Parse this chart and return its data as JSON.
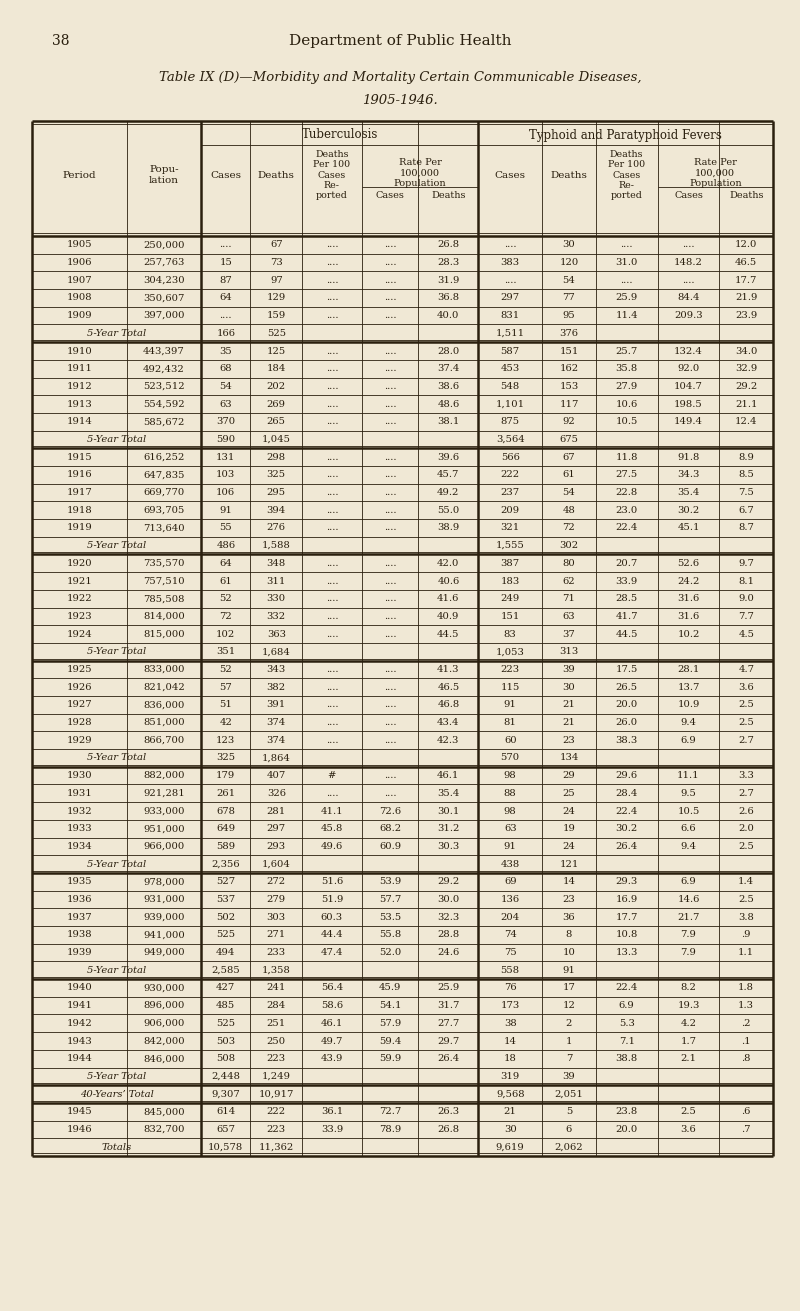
{
  "page_number": "38",
  "header": "Department of Public Health",
  "title": "Table IX (D)—Morbidity and Mortality Certain Communicable Diseases,",
  "subtitle": "1905-1946.",
  "background_color": "#f0e8d5",
  "text_color": "#2a1f0e",
  "rows": [
    [
      "1905",
      "250,000",
      "....",
      "67",
      "....",
      "....",
      "26.8",
      "....",
      "30",
      "....",
      "....",
      "12.0"
    ],
    [
      "1906",
      "257,763",
      "15",
      "73",
      "....",
      "....",
      "28.3",
      "383",
      "120",
      "31.0",
      "148.2",
      "46.5"
    ],
    [
      "1907",
      "304,230",
      "87",
      "97",
      "....",
      "....",
      "31.9",
      "....",
      "54",
      "....",
      "....",
      "17.7"
    ],
    [
      "1908",
      "350,607",
      "64",
      "129",
      "....",
      "....",
      "36.8",
      "297",
      "77",
      "25.9",
      "84.4",
      "21.9"
    ],
    [
      "1909",
      "397,000",
      "....",
      "159",
      "....",
      "....",
      "40.0",
      "831",
      "95",
      "11.4",
      "209.3",
      "23.9"
    ],
    [
      "5-Year Total",
      "",
      "166",
      "525",
      "",
      "",
      "",
      "1,511",
      "376",
      "",
      "",
      ""
    ],
    [
      "1910",
      "443,397",
      "35",
      "125",
      "....",
      "....",
      "28.0",
      "587",
      "151",
      "25.7",
      "132.4",
      "34.0"
    ],
    [
      "1911",
      "492,432",
      "68",
      "184",
      "....",
      "....",
      "37.4",
      "453",
      "162",
      "35.8",
      "92.0",
      "32.9"
    ],
    [
      "1912",
      "523,512",
      "54",
      "202",
      "....",
      "....",
      "38.6",
      "548",
      "153",
      "27.9",
      "104.7",
      "29.2"
    ],
    [
      "1913",
      "554,592",
      "63",
      "269",
      "....",
      "....",
      "48.6",
      "1,101",
      "117",
      "10.6",
      "198.5",
      "21.1"
    ],
    [
      "1914",
      "585,672",
      "370",
      "265",
      "....",
      "....",
      "38.1",
      "875",
      "92",
      "10.5",
      "149.4",
      "12.4"
    ],
    [
      "5-Year Total",
      "",
      "590",
      "1,045",
      "",
      "",
      "",
      "3,564",
      "675",
      "",
      "",
      ""
    ],
    [
      "1915",
      "616,252",
      "131",
      "298",
      "....",
      "....",
      "39.6",
      "566",
      "67",
      "11.8",
      "91.8",
      "8.9"
    ],
    [
      "1916",
      "647,835",
      "103",
      "325",
      "....",
      "....",
      "45.7",
      "222",
      "61",
      "27.5",
      "34.3",
      "8.5"
    ],
    [
      "1917",
      "669,770",
      "106",
      "295",
      "....",
      "....",
      "49.2",
      "237",
      "54",
      "22.8",
      "35.4",
      "7.5"
    ],
    [
      "1918",
      "693,705",
      "91",
      "394",
      "....",
      "....",
      "55.0",
      "209",
      "48",
      "23.0",
      "30.2",
      "6.7"
    ],
    [
      "1919",
      "713,640",
      "55",
      "276",
      "....",
      "....",
      "38.9",
      "321",
      "72",
      "22.4",
      "45.1",
      "8.7"
    ],
    [
      "5-Year Total",
      "",
      "486",
      "1,588",
      "",
      "",
      "",
      "1,555",
      "302",
      "",
      "",
      ""
    ],
    [
      "1920",
      "735,570",
      "64",
      "348",
      "....",
      "....",
      "42.0",
      "387",
      "80",
      "20.7",
      "52.6",
      "9.7"
    ],
    [
      "1921",
      "757,510",
      "61",
      "311",
      "....",
      "....",
      "40.6",
      "183",
      "62",
      "33.9",
      "24.2",
      "8.1"
    ],
    [
      "1922",
      "785,508",
      "52",
      "330",
      "....",
      "....",
      "41.6",
      "249",
      "71",
      "28.5",
      "31.6",
      "9.0"
    ],
    [
      "1923",
      "814,000",
      "72",
      "332",
      "....",
      "....",
      "40.9",
      "151",
      "63",
      "41.7",
      "31.6",
      "7.7"
    ],
    [
      "1924",
      "815,000",
      "102",
      "363",
      "....",
      "....",
      "44.5",
      "83",
      "37",
      "44.5",
      "10.2",
      "4.5"
    ],
    [
      "5-Year Total",
      "",
      "351",
      "1,684",
      "",
      "",
      "",
      "1,053",
      "313",
      "",
      "",
      ""
    ],
    [
      "1925",
      "833,000",
      "52",
      "343",
      "....",
      "....",
      "41.3",
      "223",
      "39",
      "17.5",
      "28.1",
      "4.7"
    ],
    [
      "1926",
      "821,042",
      "57",
      "382",
      "....",
      "....",
      "46.5",
      "115",
      "30",
      "26.5",
      "13.7",
      "3.6"
    ],
    [
      "1927",
      "836,000",
      "51",
      "391",
      "....",
      "....",
      "46.8",
      "91",
      "21",
      "20.0",
      "10.9",
      "2.5"
    ],
    [
      "1928",
      "851,000",
      "42",
      "374",
      "....",
      "....",
      "43.4",
      "81",
      "21",
      "26.0",
      "9.4",
      "2.5"
    ],
    [
      "1929",
      "866,700",
      "123",
      "374",
      "....",
      "....",
      "42.3",
      "60",
      "23",
      "38.3",
      "6.9",
      "2.7"
    ],
    [
      "5-Year Total",
      "",
      "325",
      "1,864",
      "",
      "",
      "",
      "570",
      "134",
      "",
      "",
      ""
    ],
    [
      "1930",
      "882,000",
      "179",
      "407",
      "#",
      "....",
      "46.1",
      "98",
      "29",
      "29.6",
      "11.1",
      "3.3"
    ],
    [
      "1931",
      "921,281",
      "261",
      "326",
      "....",
      "....",
      "35.4",
      "88",
      "25",
      "28.4",
      "9.5",
      "2.7"
    ],
    [
      "1932",
      "933,000",
      "678",
      "281",
      "41.1",
      "72.6",
      "30.1",
      "98",
      "24",
      "22.4",
      "10.5",
      "2.6"
    ],
    [
      "1933",
      "951,000",
      "649",
      "297",
      "45.8",
      "68.2",
      "31.2",
      "63",
      "19",
      "30.2",
      "6.6",
      "2.0"
    ],
    [
      "1934",
      "966,000",
      "589",
      "293",
      "49.6",
      "60.9",
      "30.3",
      "91",
      "24",
      "26.4",
      "9.4",
      "2.5"
    ],
    [
      "5-Year Total",
      "",
      "2,356",
      "1,604",
      "",
      "",
      "",
      "438",
      "121",
      "",
      "",
      ""
    ],
    [
      "1935",
      "978,000",
      "527",
      "272",
      "51.6",
      "53.9",
      "29.2",
      "69",
      "14",
      "29.3",
      "6.9",
      "1.4"
    ],
    [
      "1936",
      "931,000",
      "537",
      "279",
      "51.9",
      "57.7",
      "30.0",
      "136",
      "23",
      "16.9",
      "14.6",
      "2.5"
    ],
    [
      "1937",
      "939,000",
      "502",
      "303",
      "60.3",
      "53.5",
      "32.3",
      "204",
      "36",
      "17.7",
      "21.7",
      "3.8"
    ],
    [
      "1938",
      "941,000",
      "525",
      "271",
      "44.4",
      "55.8",
      "28.8",
      "74",
      "8",
      "10.8",
      "7.9",
      ".9"
    ],
    [
      "1939",
      "949,000",
      "494",
      "233",
      "47.4",
      "52.0",
      "24.6",
      "75",
      "10",
      "13.3",
      "7.9",
      "1.1"
    ],
    [
      "5-Year Total",
      "",
      "2,585",
      "1,358",
      "",
      "",
      "",
      "558",
      "91",
      "",
      "",
      ""
    ],
    [
      "1940",
      "930,000",
      "427",
      "241",
      "56.4",
      "45.9",
      "25.9",
      "76",
      "17",
      "22.4",
      "8.2",
      "1.8"
    ],
    [
      "1941",
      "896,000",
      "485",
      "284",
      "58.6",
      "54.1",
      "31.7",
      "173",
      "12",
      "6.9",
      "19.3",
      "1.3"
    ],
    [
      "1942",
      "906,000",
      "525",
      "251",
      "46.1",
      "57.9",
      "27.7",
      "38",
      "2",
      "5.3",
      "4.2",
      ".2"
    ],
    [
      "1943",
      "842,000",
      "503",
      "250",
      "49.7",
      "59.4",
      "29.7",
      "14",
      "1",
      "7.1",
      "1.7",
      ".1"
    ],
    [
      "1944",
      "846,000",
      "508",
      "223",
      "43.9",
      "59.9",
      "26.4",
      "18",
      "7",
      "38.8",
      "2.1",
      ".8"
    ],
    [
      "5-Year Total",
      "",
      "2,448",
      "1,249",
      "",
      "",
      "",
      "319",
      "39",
      "",
      "",
      ""
    ],
    [
      "40-Years’ Total",
      "",
      "9,307",
      "10,917",
      "",
      "",
      "",
      "9,568",
      "2,051",
      "",
      "",
      ""
    ],
    [
      "1945",
      "845,000",
      "614",
      "222",
      "36.1",
      "72.7",
      "26.3",
      "21",
      "5",
      "23.8",
      "2.5",
      ".6"
    ],
    [
      "1946",
      "832,700",
      "657",
      "223",
      "33.9",
      "78.9",
      "26.8",
      "30",
      "6",
      "20.0",
      "3.6",
      ".7"
    ],
    [
      "Totals",
      "",
      "10,578",
      "11,362",
      "",
      "",
      "",
      "9,619",
      "2,062",
      "",
      "",
      ""
    ]
  ]
}
